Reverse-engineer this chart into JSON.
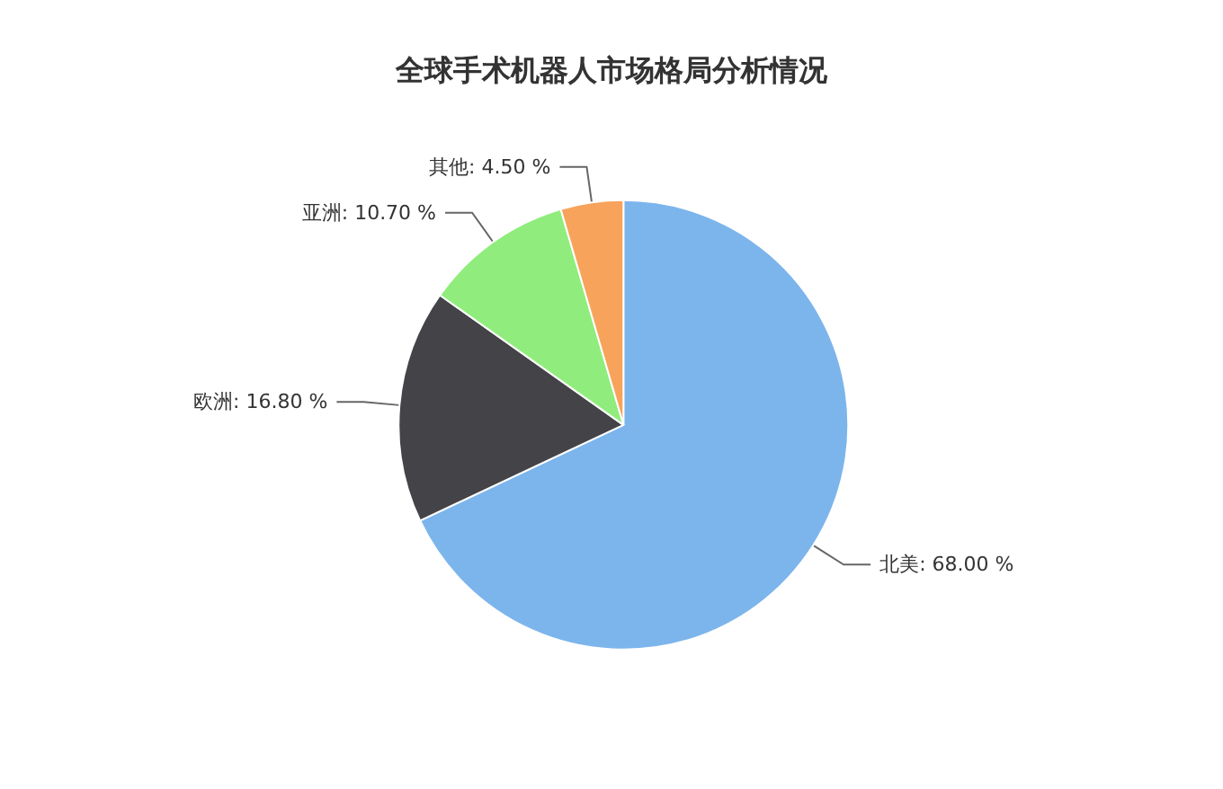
{
  "chart_data": {
    "type": "pie",
    "title": "全球手术机器人市场格局分析情况",
    "categories": [
      "北美",
      "欧洲",
      "亚洲",
      "其他"
    ],
    "values": [
      68.0,
      16.8,
      10.7,
      4.5
    ],
    "value_labels": [
      "68.00 %",
      "16.80 %",
      "10.70 %",
      "4.50 %"
    ],
    "colors": [
      "#7cb5ec",
      "#434348",
      "#90ed7d",
      "#f7a35c"
    ],
    "legend": false
  }
}
